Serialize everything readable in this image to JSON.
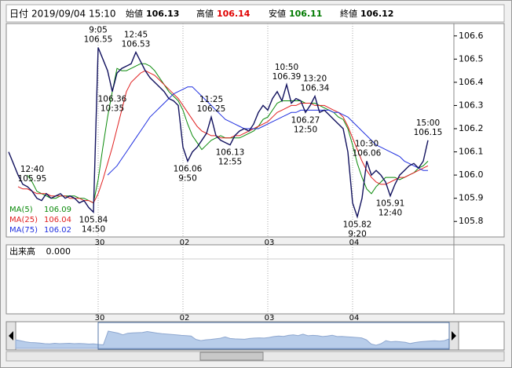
{
  "header": {
    "date_label": "日付",
    "date": "2019/09/04 15:10",
    "fields": [
      {
        "label": "始値",
        "value": "106.13",
        "color": "#000000"
      },
      {
        "label": "高値",
        "value": "106.14",
        "color": "#e00000"
      },
      {
        "label": "安値",
        "value": "106.11",
        "color": "#007a00"
      },
      {
        "label": "終値",
        "value": "106.12",
        "color": "#000000"
      }
    ]
  },
  "chart_data": {
    "type": "line",
    "xlim": [
      0,
      94.5
    ],
    "ylim": [
      105.75,
      106.65
    ],
    "xticks": [
      {
        "value": 19,
        "label": "30"
      },
      {
        "value": 37,
        "label": "02"
      },
      {
        "value": 55,
        "label": "03"
      },
      {
        "value": 73,
        "label": "04"
      }
    ],
    "yticks": [
      105.8,
      105.9,
      {
        "value": 106,
        "label": "106.0"
      },
      106.1,
      106.2,
      106.3,
      106.4,
      106.5,
      106.6
    ],
    "grid": true,
    "price": {
      "color": "#12125e",
      "values": [
        106.1,
        106.05,
        106.0,
        105.96,
        105.95,
        105.93,
        105.9,
        105.89,
        105.92,
        105.9,
        105.91,
        105.92,
        105.9,
        105.91,
        105.9,
        105.88,
        105.89,
        105.86,
        105.84,
        106.55,
        106.5,
        106.45,
        106.36,
        106.44,
        106.46,
        106.47,
        106.48,
        106.53,
        106.49,
        106.45,
        106.42,
        106.4,
        106.38,
        106.36,
        106.33,
        106.32,
        106.3,
        106.12,
        106.06,
        106.1,
        106.12,
        106.15,
        106.18,
        106.25,
        106.17,
        106.15,
        106.14,
        106.13,
        106.17,
        106.19,
        106.2,
        106.19,
        106.22,
        106.27,
        106.3,
        106.28,
        106.33,
        106.36,
        106.32,
        106.39,
        106.31,
        106.33,
        106.32,
        106.27,
        106.3,
        106.34,
        106.27,
        106.28,
        106.26,
        106.24,
        106.22,
        106.2,
        106.1,
        105.88,
        105.82,
        105.9,
        106.06,
        106.0,
        106.02,
        106.0,
        105.97,
        105.91,
        105.96,
        106.0,
        106.02,
        106.04,
        106.05,
        106.03,
        106.06,
        106.15
      ]
    },
    "series": [
      {
        "name": "MA(5)",
        "label_value": "106.09",
        "color": "#0a8a0a",
        "values": [
          null,
          null,
          null,
          null,
          106.0,
          105.97,
          105.93,
          105.92,
          105.91,
          105.9,
          105.9,
          105.91,
          105.91,
          105.91,
          105.91,
          105.9,
          105.9,
          105.89,
          105.88,
          105.98,
          106.12,
          106.25,
          106.36,
          106.46,
          106.45,
          106.45,
          106.46,
          106.47,
          106.48,
          106.48,
          106.47,
          106.45,
          106.42,
          106.39,
          106.36,
          106.34,
          106.32,
          106.28,
          106.22,
          106.17,
          106.14,
          106.11,
          106.13,
          106.15,
          106.16,
          106.17,
          106.16,
          106.16,
          106.16,
          106.16,
          106.17,
          106.18,
          106.19,
          106.21,
          106.24,
          106.25,
          106.28,
          106.31,
          106.32,
          106.32,
          106.32,
          106.32,
          106.32,
          106.31,
          106.31,
          106.31,
          106.3,
          106.29,
          106.28,
          106.27,
          106.25,
          106.24,
          106.2,
          106.13,
          106.05,
          105.99,
          105.94,
          105.92,
          105.95,
          105.97,
          105.99,
          105.99,
          105.99,
          105.98,
          105.99,
          106.0,
          106.01,
          106.03,
          106.04,
          106.06
        ]
      },
      {
        "name": "MA(25)",
        "label_value": "106.04",
        "color": "#e02020",
        "values": [
          null,
          null,
          105.95,
          105.94,
          105.94,
          105.93,
          105.92,
          105.92,
          105.92,
          105.91,
          105.91,
          105.91,
          105.91,
          105.9,
          105.9,
          105.9,
          105.89,
          105.89,
          105.88,
          105.92,
          105.98,
          106.05,
          106.12,
          106.2,
          106.28,
          106.36,
          106.4,
          106.42,
          106.44,
          106.45,
          106.44,
          106.43,
          106.41,
          106.39,
          106.37,
          106.35,
          106.33,
          106.3,
          106.27,
          106.24,
          106.21,
          106.19,
          106.18,
          106.17,
          106.17,
          106.16,
          106.16,
          106.16,
          106.17,
          106.17,
          106.18,
          106.19,
          106.2,
          106.21,
          106.22,
          106.23,
          106.25,
          106.27,
          106.28,
          106.29,
          106.3,
          106.3,
          106.31,
          106.31,
          106.31,
          106.3,
          106.3,
          106.3,
          106.29,
          106.28,
          106.27,
          106.25,
          106.21,
          106.16,
          106.11,
          106.06,
          106.02,
          105.99,
          105.97,
          105.96,
          105.96,
          105.97,
          105.98,
          105.99,
          105.99,
          106.0,
          106.01,
          106.02,
          106.03,
          106.04
        ]
      },
      {
        "name": "MA(75)",
        "label_value": "106.02",
        "color": "#2030e0",
        "values": [
          null,
          null,
          null,
          null,
          null,
          null,
          null,
          null,
          null,
          null,
          null,
          null,
          null,
          null,
          null,
          null,
          null,
          null,
          null,
          null,
          null,
          106.0,
          106.02,
          106.04,
          106.07,
          106.1,
          106.13,
          106.16,
          106.19,
          106.22,
          106.25,
          106.27,
          106.29,
          106.31,
          106.33,
          106.35,
          106.36,
          106.37,
          106.38,
          106.38,
          106.36,
          106.34,
          106.32,
          106.3,
          106.28,
          106.26,
          106.24,
          106.23,
          106.22,
          106.21,
          106.2,
          106.2,
          106.2,
          106.2,
          106.21,
          106.22,
          106.23,
          106.24,
          106.25,
          106.26,
          106.27,
          106.27,
          106.28,
          106.28,
          106.28,
          106.28,
          106.28,
          106.28,
          106.28,
          106.27,
          106.27,
          106.26,
          106.25,
          106.23,
          106.21,
          106.19,
          106.17,
          106.15,
          106.13,
          106.12,
          106.11,
          106.1,
          106.09,
          106.08,
          106.06,
          106.05,
          106.04,
          106.03,
          106.02,
          106.02
        ]
      }
    ],
    "annotations": [
      {
        "x": 19,
        "y": 106.55,
        "position": "above",
        "lines": [
          "9:05",
          "106.55"
        ]
      },
      {
        "x": 27,
        "y": 106.53,
        "position": "above",
        "lines": [
          "12:45",
          "106.53"
        ]
      },
      {
        "x": 22,
        "y": 106.36,
        "position": "below",
        "lines": [
          "106.36",
          "10:35"
        ]
      },
      {
        "x": 18,
        "y": 105.84,
        "position": "below",
        "lines": [
          "105.84",
          "14:50"
        ]
      },
      {
        "x": 5,
        "y": 105.95,
        "position": "above",
        "lines": [
          "12:40",
          "105.95"
        ]
      },
      {
        "x": 43,
        "y": 106.25,
        "position": "above",
        "lines": [
          "11:25",
          "106.25"
        ]
      },
      {
        "x": 47,
        "y": 106.13,
        "position": "below",
        "lines": [
          "106.13",
          "12:55"
        ]
      },
      {
        "x": 38,
        "y": 106.06,
        "position": "below",
        "lines": [
          "106.06",
          "9:50"
        ]
      },
      {
        "x": 59,
        "y": 106.39,
        "position": "above",
        "lines": [
          "10:50",
          "106.39"
        ]
      },
      {
        "x": 65,
        "y": 106.34,
        "position": "above",
        "lines": [
          "13:20",
          "106.34"
        ]
      },
      {
        "x": 63,
        "y": 106.27,
        "position": "below",
        "lines": [
          "106.27",
          "12:50"
        ]
      },
      {
        "x": 76,
        "y": 106.06,
        "position": "above",
        "lines": [
          "10:30",
          "106.06"
        ]
      },
      {
        "x": 81,
        "y": 105.91,
        "position": "below",
        "lines": [
          "105.91",
          "12:40"
        ]
      },
      {
        "x": 74,
        "y": 105.82,
        "position": "below",
        "lines": [
          "105.82",
          "9:20"
        ]
      },
      {
        "x": 89,
        "y": 106.15,
        "position": "above",
        "lines": [
          "15:00",
          "106.15"
        ]
      }
    ],
    "volume": {
      "label": "出来高",
      "value": "0.000"
    }
  }
}
